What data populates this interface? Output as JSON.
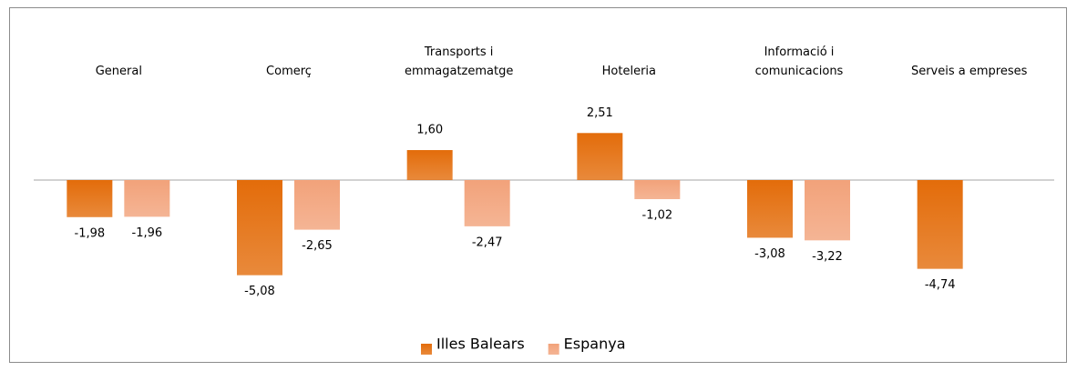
{
  "chart_data": {
    "type": "bar",
    "categories": [
      "General",
      "Comerç",
      "Transports i\nemmagatzematge",
      "Hoteleria",
      "Informació i\ncomunicacions",
      "Serveis a empreses"
    ],
    "series": [
      {
        "name": "Illes Balears",
        "color": "#e36c0a",
        "values": [
          -1.98,
          -5.08,
          1.6,
          2.51,
          -3.08,
          -4.74
        ],
        "value_labels": [
          "-1,98",
          "-5,08",
          "1,60",
          "2,51",
          "-3,08",
          "-4,74"
        ]
      },
      {
        "name": "Espanya",
        "color": "#f2a27a",
        "values": [
          -1.96,
          -2.65,
          -2.47,
          -1.02,
          -3.22,
          null
        ],
        "value_labels": [
          "-1,96",
          "-2,65",
          "-2,47",
          "-1,02",
          "-3,22",
          null
        ]
      }
    ],
    "legend": "bottom"
  }
}
